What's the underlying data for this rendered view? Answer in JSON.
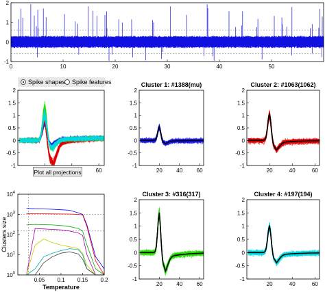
{
  "controls": {
    "radio_spike_shapes": "Spike shapes",
    "radio_spike_features": "Spike features",
    "plot_all_button": "Plot all projections"
  },
  "colors": {
    "trace": "#1010e0",
    "cluster1": "#1a1ae6",
    "cluster2": "#e00000",
    "cluster3": "#22dd00",
    "cluster4": "#00d8e0",
    "mean": "#000000"
  },
  "chart_data": [
    {
      "type": "line",
      "panel": "raw-trace",
      "title": "",
      "xlim": [
        0,
        60
      ],
      "ylim": [
        -1,
        2
      ],
      "xticks": [
        0,
        10,
        20,
        30,
        40,
        50
      ],
      "yticks": [
        -1,
        0,
        1,
        2
      ],
      "series": [
        {
          "values_note": "",
          "noise_amplitude": 0.25
        }
      ]
    },
    {
      "type": "line",
      "panel": "all-clusters",
      "title": "",
      "xlim": [
        0,
        64
      ],
      "ylim": [
        -1,
        2
      ],
      "xticks": [
        20,
        40,
        60
      ],
      "yticks": [
        -1,
        -0.5,
        0,
        0.5,
        1,
        1.5,
        2
      ],
      "series": [
        {
          "color": "cluster1",
          "peak": 0.75
        },
        {
          "color": "cluster2",
          "peak": 0.9
        },
        {
          "color": "cluster3",
          "peak": 1.3
        },
        {
          "color": "cluster4",
          "peak": 1.1
        }
      ]
    },
    {
      "type": "line",
      "panel": "cluster-1",
      "title": "Cluster 1: #1388(mu)",
      "xlim": [
        0,
        64
      ],
      "ylim": [
        -1,
        2
      ],
      "xticks": [
        20,
        40,
        60
      ],
      "yticks": [
        -1,
        -0.5,
        0,
        0.5,
        1,
        1.5,
        2
      ],
      "mean_peak": 0.55,
      "mean_trough": -0.1
    },
    {
      "type": "line",
      "panel": "cluster-2",
      "title": "Cluster 2: #1063(1062)",
      "xlim": [
        0,
        64
      ],
      "ylim": [
        -1,
        2
      ],
      "xticks": [
        20,
        40,
        60
      ],
      "yticks": [
        -1,
        -0.5,
        0,
        0.5,
        1,
        1.5,
        2
      ],
      "mean_peak": 1.1,
      "mean_trough": -0.3
    },
    {
      "type": "line",
      "panel": "cluster-3",
      "title": "Cluster 3: #316(317)",
      "xlim": [
        0,
        64
      ],
      "ylim": [
        -1,
        2
      ],
      "xticks": [
        20,
        40,
        60
      ],
      "yticks": [
        -1,
        -0.5,
        0,
        0.5,
        1,
        1.5,
        2
      ],
      "mean_peak": 1.55,
      "mean_trough": -0.55
    },
    {
      "type": "line",
      "panel": "cluster-4",
      "title": "Cluster 4: #197(194)",
      "xlim": [
        0,
        64
      ],
      "ylim": [
        -1,
        2
      ],
      "xticks": [
        20,
        40,
        60
      ],
      "yticks": [
        -1,
        -0.5,
        0,
        0.5,
        1,
        1.5,
        2
      ],
      "mean_peak": 1.05,
      "mean_trough": -0.3
    },
    {
      "type": "line",
      "panel": "temperature",
      "title": "",
      "xlabel": "Temperature",
      "ylabel": "Clusters size",
      "xlim": [
        0,
        0.2
      ],
      "ylim_log10": [
        0,
        4
      ],
      "xticks": [
        "0.05",
        "0.1",
        "0.15",
        "0.2"
      ],
      "yticks": [
        "10^0",
        "10^1",
        "10^2",
        "10^3",
        "10^4"
      ],
      "x": [
        0.02,
        0.04,
        0.06,
        0.08,
        0.1,
        0.12,
        0.14,
        0.15,
        0.16,
        0.18,
        0.2
      ],
      "series": [
        {
          "color": "#0000ff",
          "values": [
            2000,
            1900,
            1850,
            1800,
            1700,
            1600,
            1200,
            1000,
            300,
            8,
            2
          ]
        },
        {
          "color": "#ff0000",
          "values": [
            1100,
            1080,
            1070,
            1060,
            1050,
            1040,
            1000,
            950,
            250,
            5,
            1
          ]
        },
        {
          "color": "#00aa00",
          "values": [
            300,
            320,
            310,
            300,
            280,
            250,
            200,
            150,
            30,
            2,
            1
          ]
        },
        {
          "color": "#aa00aa",
          "values": [
            1,
            200,
            190,
            180,
            170,
            150,
            120,
            90,
            10,
            1,
            1
          ]
        },
        {
          "color": "#cccc00",
          "values": [
            1,
            30,
            60,
            40,
            30,
            25,
            20,
            12,
            3,
            1,
            1
          ]
        },
        {
          "color": "#00aaaa",
          "values": [
            1,
            2,
            8,
            12,
            16,
            20,
            18,
            10,
            2,
            1,
            1
          ]
        },
        {
          "color": "#444444",
          "values": [
            1,
            1,
            4,
            8,
            12,
            14,
            11,
            6,
            2,
            1,
            1
          ]
        }
      ],
      "reference_lines": [
        150,
        1000
      ]
    }
  ]
}
